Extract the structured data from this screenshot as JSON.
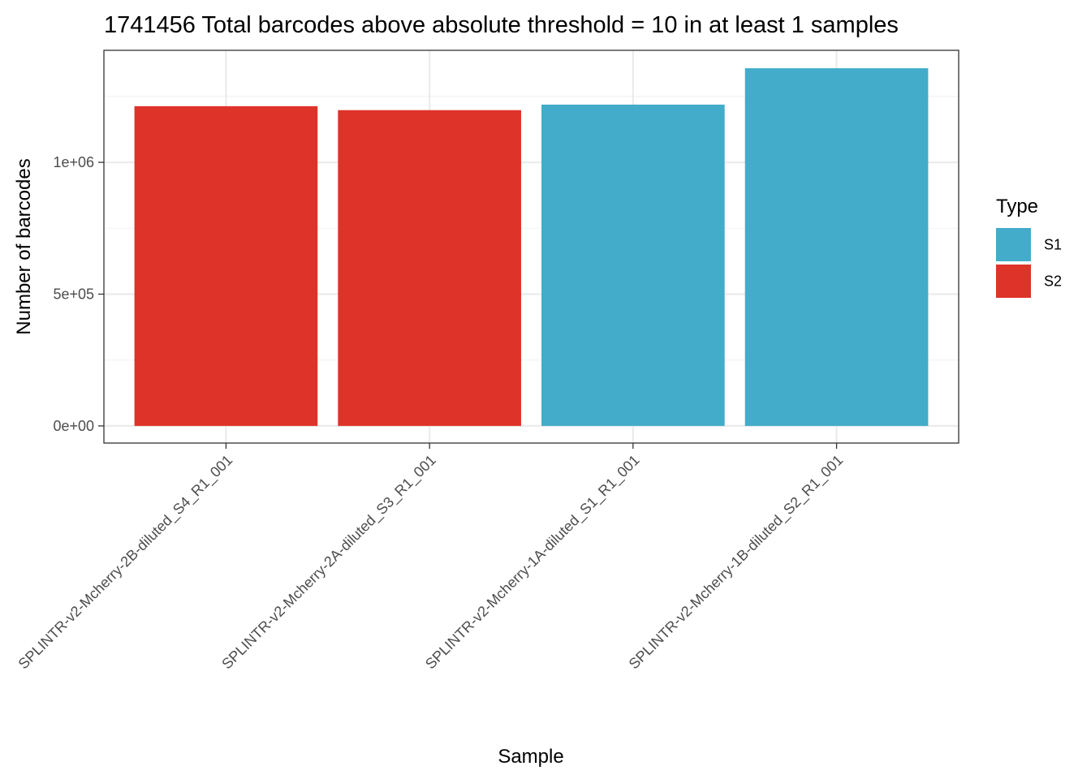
{
  "chart_data": {
    "type": "bar",
    "title": "1741456 Total barcodes above absolute threshold = 10 in at least 1 samples",
    "xlabel": "Sample",
    "ylabel": "Number of barcodes",
    "categories": [
      "SPLINTR-v2-Mcherry-2B-diluted_S4_R1_001",
      "SPLINTR-v2-Mcherry-2A-diluted_S3_R1_001",
      "SPLINTR-v2-Mcherry-1A-diluted_S1_R1_001",
      "SPLINTR-v2-Mcherry-1B-diluted_S2_R1_001"
    ],
    "values": [
      1213000,
      1198000,
      1219000,
      1357000
    ],
    "bar_types": [
      "S2",
      "S2",
      "S1",
      "S1"
    ],
    "ylim": [
      -65000,
      1425000
    ],
    "yticks": [
      {
        "value": 0,
        "label": "0e+00"
      },
      {
        "value": 500000,
        "label": "5e+05"
      },
      {
        "value": 1000000,
        "label": "1e+06"
      }
    ],
    "y_minor_ticks": [
      250000,
      750000,
      1250000
    ],
    "grid": true,
    "legend": {
      "title": "Type",
      "placement": "right",
      "entries": [
        {
          "name": "S1",
          "color": "#42ACCA"
        },
        {
          "name": "S2",
          "color": "#DE3328"
        }
      ]
    },
    "colors": {
      "S1": "#42ACCA",
      "S2": "#DE3328",
      "grid_major": "#EBEBEB",
      "grid_minor": "#F2F2F2",
      "panel_border": "#333333",
      "tick": "#333333"
    }
  }
}
